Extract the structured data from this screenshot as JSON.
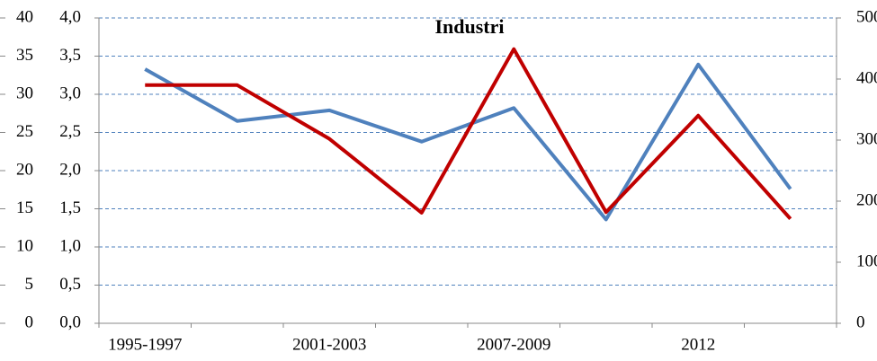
{
  "chart_data": {
    "type": "line",
    "title": "Industri",
    "categories": [
      "1995-1997",
      null,
      "2001-2003",
      null,
      "2007-2009",
      null,
      "2012",
      null
    ],
    "series": [
      {
        "color": "#4f81bd",
        "values": [
          3.33,
          2.65,
          2.79,
          2.38,
          2.82,
          1.36,
          3.39,
          1.76
        ]
      },
      {
        "color": "#c00000",
        "axis": "y2",
        "values": [
          390,
          390,
          302,
          181,
          449,
          182,
          340,
          171
        ]
      }
    ],
    "ylim": [
      0,
      4
    ],
    "yticks": [
      {
        "value": 0,
        "label": "0,0"
      },
      {
        "value": 0.5,
        "label": "0,5"
      },
      {
        "value": 1,
        "label": "1,0"
      },
      {
        "value": 1.5,
        "label": "1,5"
      },
      {
        "value": 2,
        "label": "2,0"
      },
      {
        "value": 2.5,
        "label": "2,5"
      },
      {
        "value": 3,
        "label": "3,0"
      },
      {
        "value": 3.5,
        "label": "3,5"
      },
      {
        "value": 4,
        "label": "4,0"
      }
    ],
    "y3lim": [
      0,
      40
    ],
    "y3ticks": [
      0,
      5,
      10,
      15,
      20,
      25,
      30,
      35,
      40
    ],
    "y2lim": [
      0,
      500
    ],
    "y2ticks": [
      0,
      100,
      200,
      300,
      400,
      500
    ],
    "grid": true
  }
}
